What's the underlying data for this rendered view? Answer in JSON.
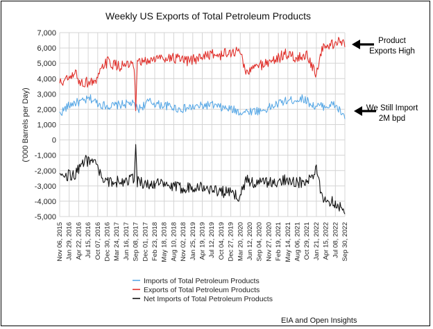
{
  "chart_data": {
    "type": "line",
    "title": "Weekly US Exports of Total Petroleum Products",
    "ylabel": "('000 Barrels per Day)",
    "xlabel": "",
    "ylim": [
      -5000,
      7000
    ],
    "yticks": [
      "7,000",
      "6,000",
      "5,000",
      "4,000",
      "3,000",
      "2,000",
      "1,000",
      "0",
      "-1,000",
      "-2,000",
      "-3,000",
      "-4,000",
      "-5,000"
    ],
    "ytick_values": [
      7000,
      6000,
      5000,
      4000,
      3000,
      2000,
      1000,
      0,
      -1000,
      -2000,
      -3000,
      -4000,
      -5000
    ],
    "x_range": [
      "2015-11-06",
      "2022-09-30"
    ],
    "x_ticks": [
      {
        "label": "Nov 06, 2015",
        "date": "2015-11-06"
      },
      {
        "label": "Jan 29, 2016",
        "date": "2016-01-29"
      },
      {
        "label": "Apr 22, 2016",
        "date": "2016-04-22"
      },
      {
        "label": "Jul 15, 2016",
        "date": "2016-07-15"
      },
      {
        "label": "Oct 07, 2016",
        "date": "2016-10-07"
      },
      {
        "label": "Dec 30, 2016",
        "date": "2016-12-30"
      },
      {
        "label": "Mar 24, 2017",
        "date": "2017-03-24"
      },
      {
        "label": "Jun 16, 2017",
        "date": "2017-06-16"
      },
      {
        "label": "Sep 08, 2017",
        "date": "2017-09-08"
      },
      {
        "label": "Dec 01, 2017",
        "date": "2017-12-01"
      },
      {
        "label": "Feb 23, 2018",
        "date": "2018-02-23"
      },
      {
        "label": "May 18, 2018",
        "date": "2018-05-18"
      },
      {
        "label": "Aug 10, 2018",
        "date": "2018-08-10"
      },
      {
        "label": "Nov 02, 2018",
        "date": "2018-11-02"
      },
      {
        "label": "Jan 25, 2019",
        "date": "2019-01-25"
      },
      {
        "label": "Apr 19, 2019",
        "date": "2019-04-19"
      },
      {
        "label": "Jul 12, 2019",
        "date": "2019-07-12"
      },
      {
        "label": "Oct 04, 2019",
        "date": "2019-10-04"
      },
      {
        "label": "Dec 27, 2019",
        "date": "2019-12-27"
      },
      {
        "label": "Mar 20, 2020",
        "date": "2020-03-20"
      },
      {
        "label": "Jun 12, 2020",
        "date": "2020-06-12"
      },
      {
        "label": "Sep 04, 2020",
        "date": "2020-09-04"
      },
      {
        "label": "Nov 27, 2020",
        "date": "2020-11-27"
      },
      {
        "label": "Feb 19, 2021",
        "date": "2021-02-19"
      },
      {
        "label": "May 14, 2021",
        "date": "2021-05-14"
      },
      {
        "label": "Aug 06, 2021",
        "date": "2021-08-06"
      },
      {
        "label": "Oct 29, 2021",
        "date": "2021-10-29"
      },
      {
        "label": "Jan 21, 2022",
        "date": "2022-01-21"
      },
      {
        "label": "Apr 15, 2022",
        "date": "2022-04-15"
      },
      {
        "label": "Jul 08, 2022",
        "date": "2022-07-08"
      },
      {
        "label": "Sep 30, 2022",
        "date": "2022-09-30"
      }
    ],
    "grid": true,
    "legend_position": "bottom-left",
    "series": [
      {
        "name": "Imports of Total Petroleum Products",
        "color": "#5aa9e6",
        "points": [
          [
            "2015-11-06",
            1700
          ],
          [
            "2016-01-01",
            2100
          ],
          [
            "2016-03-01",
            2400
          ],
          [
            "2016-06-01",
            2500
          ],
          [
            "2016-08-01",
            2700
          ],
          [
            "2016-11-01",
            2300
          ],
          [
            "2017-02-01",
            2200
          ],
          [
            "2017-05-01",
            2300
          ],
          [
            "2017-08-01",
            2400
          ],
          [
            "2017-10-01",
            2000
          ],
          [
            "2018-01-01",
            2500
          ],
          [
            "2018-04-01",
            2300
          ],
          [
            "2018-07-01",
            2200
          ],
          [
            "2018-10-01",
            2000
          ],
          [
            "2019-01-01",
            2100
          ],
          [
            "2019-04-01",
            2200
          ],
          [
            "2019-07-01",
            2300
          ],
          [
            "2019-10-01",
            2100
          ],
          [
            "2020-01-01",
            2000
          ],
          [
            "2020-04-01",
            1800
          ],
          [
            "2020-07-01",
            1900
          ],
          [
            "2020-10-01",
            1900
          ],
          [
            "2021-01-01",
            2200
          ],
          [
            "2021-04-01",
            2500
          ],
          [
            "2021-07-01",
            2600
          ],
          [
            "2021-10-01",
            2700
          ],
          [
            "2022-01-01",
            2200
          ],
          [
            "2022-04-01",
            2200
          ],
          [
            "2022-07-01",
            2300
          ],
          [
            "2022-09-30",
            1500
          ]
        ]
      },
      {
        "name": "Exports of Total Petroleum Products",
        "color": "#e0302b",
        "points": [
          [
            "2015-11-06",
            3700
          ],
          [
            "2016-01-15",
            3950
          ],
          [
            "2016-03-01",
            4100
          ],
          [
            "2016-04-01",
            4400
          ],
          [
            "2016-05-01",
            3700
          ],
          [
            "2016-08-01",
            3800
          ],
          [
            "2016-10-01",
            3800
          ],
          [
            "2016-11-15",
            4700
          ],
          [
            "2017-01-01",
            5100
          ],
          [
            "2017-04-01",
            4800
          ],
          [
            "2017-07-01",
            4900
          ],
          [
            "2017-08-25",
            4700
          ],
          [
            "2017-09-08",
            1900
          ],
          [
            "2017-09-22",
            5000
          ],
          [
            "2017-12-01",
            5100
          ],
          [
            "2018-03-01",
            5300
          ],
          [
            "2018-06-01",
            5400
          ],
          [
            "2018-09-01",
            5300
          ],
          [
            "2018-12-01",
            5100
          ],
          [
            "2019-03-01",
            5300
          ],
          [
            "2019-06-01",
            5600
          ],
          [
            "2019-09-01",
            5500
          ],
          [
            "2020-01-01",
            5700
          ],
          [
            "2020-03-20",
            5800
          ],
          [
            "2020-05-15",
            4300
          ],
          [
            "2020-08-01",
            4800
          ],
          [
            "2020-11-01",
            5000
          ],
          [
            "2021-02-01",
            5300
          ],
          [
            "2021-05-01",
            5600
          ],
          [
            "2021-08-01",
            5300
          ],
          [
            "2021-11-01",
            5600
          ],
          [
            "2022-01-21",
            4100
          ],
          [
            "2022-03-15",
            6000
          ],
          [
            "2022-06-01",
            6200
          ],
          [
            "2022-08-15",
            6500
          ],
          [
            "2022-09-30",
            6100
          ]
        ]
      },
      {
        "name": "Net Imports of Total Petroleum Products",
        "color": "#111111",
        "points": [
          [
            "2015-11-06",
            -2000
          ],
          [
            "2016-01-15",
            -2300
          ],
          [
            "2016-04-01",
            -2200
          ],
          [
            "2016-06-01",
            -1400
          ],
          [
            "2016-09-01",
            -1300
          ],
          [
            "2016-11-15",
            -2500
          ],
          [
            "2017-01-01",
            -2800
          ],
          [
            "2017-04-01",
            -2700
          ],
          [
            "2017-07-01",
            -2600
          ],
          [
            "2017-08-25",
            -2500
          ],
          [
            "2017-09-08",
            -300
          ],
          [
            "2017-09-22",
            -2700
          ],
          [
            "2017-12-01",
            -2900
          ],
          [
            "2018-03-01",
            -2800
          ],
          [
            "2018-06-01",
            -3000
          ],
          [
            "2018-09-01",
            -3100
          ],
          [
            "2018-12-01",
            -3100
          ],
          [
            "2019-03-01",
            -3000
          ],
          [
            "2019-06-01",
            -3200
          ],
          [
            "2019-09-01",
            -3300
          ],
          [
            "2020-01-01",
            -3500
          ],
          [
            "2020-03-20",
            -3700
          ],
          [
            "2020-05-15",
            -2500
          ],
          [
            "2020-08-01",
            -2900
          ],
          [
            "2020-11-01",
            -2700
          ],
          [
            "2021-02-01",
            -2900
          ],
          [
            "2021-05-01",
            -2500
          ],
          [
            "2021-08-01",
            -2800
          ],
          [
            "2021-11-01",
            -2800
          ],
          [
            "2022-01-21",
            -2000
          ],
          [
            "2022-03-15",
            -3800
          ],
          [
            "2022-06-01",
            -4000
          ],
          [
            "2022-08-15",
            -4300
          ],
          [
            "2022-09-30",
            -4600
          ]
        ]
      }
    ],
    "annotations": [
      {
        "id": "exports-high",
        "lines": [
          "Product",
          "Exports High"
        ],
        "series": "Exports of Total Petroleum Products"
      },
      {
        "id": "still-import",
        "lines": [
          "We Still Import",
          "2M bpd"
        ],
        "series": "Imports of Total Petroleum Products"
      }
    ],
    "source": "EIA and Open Insights"
  }
}
